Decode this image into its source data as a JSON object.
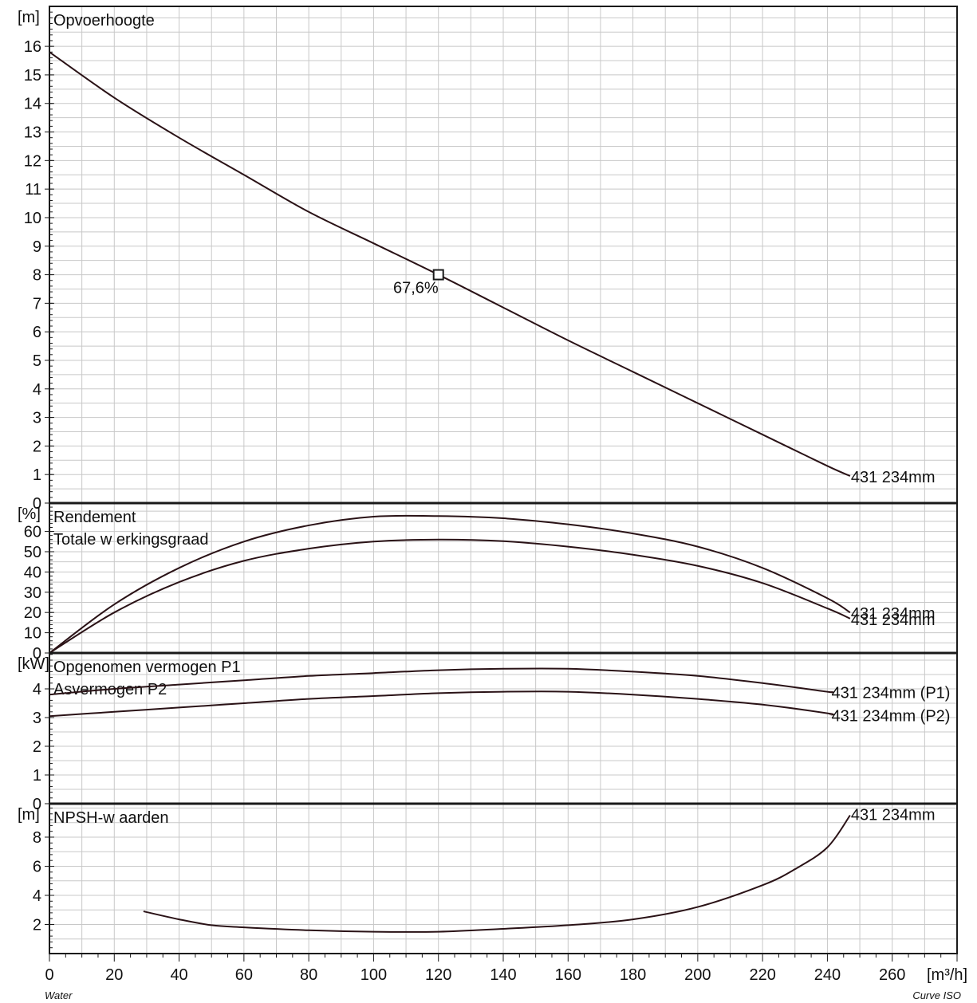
{
  "footer": {
    "left": "Water",
    "right": "Curve ISO"
  },
  "chart_data": {
    "type": "line",
    "x_axis": {
      "unit": "[m³/h]",
      "range": [
        0,
        280
      ],
      "ticks": [
        0,
        20,
        40,
        60,
        80,
        100,
        120,
        140,
        160,
        180,
        200,
        220,
        240,
        260
      ]
    },
    "grid": true,
    "panels": [
      {
        "id": "head",
        "titles": [
          "Opvoerhoogte"
        ],
        "unit": "[m]",
        "ylim": [
          0,
          17.4
        ],
        "yticks": [
          0,
          1,
          2,
          3,
          4,
          5,
          6,
          7,
          8,
          9,
          10,
          11,
          12,
          13,
          14,
          15,
          16
        ],
        "series": [
          {
            "name": "431 234mm",
            "x": [
              0,
              20,
              40,
              60,
              80,
              100,
              120,
              140,
              160,
              180,
              200,
              220,
              240,
              247
            ],
            "y": [
              15.8,
              14.2,
              12.8,
              11.5,
              10.2,
              9.1,
              8.0,
              6.85,
              5.7,
              4.6,
              3.5,
              2.4,
              1.3,
              0.95
            ]
          }
        ],
        "operating_point": {
          "x": 120,
          "y": 8.0,
          "label": "67,6%"
        }
      },
      {
        "id": "efficiency",
        "titles": [
          "Rendement",
          "Totale w erkingsgraad"
        ],
        "unit": "[%]",
        "ylim": [
          0,
          74
        ],
        "yticks": [
          0,
          10,
          20,
          30,
          40,
          50,
          60
        ],
        "series": [
          {
            "name": "431 234mm",
            "x": [
              0,
              20,
              40,
              60,
              80,
              100,
              120,
              140,
              160,
              180,
              200,
              220,
              240,
              247
            ],
            "y": [
              0,
              24,
              42,
              55,
              63,
              67.3,
              67.6,
              66.5,
              63.5,
              59,
              52.5,
              42,
              27,
              20
            ]
          },
          {
            "name": "431 234mm",
            "x": [
              0,
              20,
              40,
              60,
              80,
              100,
              120,
              140,
              160,
              180,
              200,
              220,
              240,
              247
            ],
            "y": [
              0,
              20,
              35,
              45.5,
              51.5,
              55,
              56,
              55.2,
              52.5,
              48.5,
              43,
              34.5,
              22,
              17
            ]
          }
        ]
      },
      {
        "id": "power",
        "titles": [
          "Opgenomen vermogen P1",
          "Asvermogen P2"
        ],
        "unit": "[kW]",
        "ylim": [
          0,
          5.25
        ],
        "yticks": [
          0,
          1,
          2,
          3,
          4
        ],
        "series": [
          {
            "name": "431 234mm (P1)",
            "x": [
              0,
              20,
              40,
              60,
              80,
              100,
              120,
              140,
              160,
              180,
              200,
              220,
              240,
              241
            ],
            "y": [
              3.8,
              4.0,
              4.15,
              4.3,
              4.45,
              4.55,
              4.65,
              4.7,
              4.7,
              4.6,
              4.45,
              4.2,
              3.9,
              3.9
            ]
          },
          {
            "name": "431 234mm (P2)",
            "x": [
              0,
              20,
              40,
              60,
              80,
              100,
              120,
              140,
              160,
              180,
              200,
              220,
              240,
              241
            ],
            "y": [
              3.05,
              3.2,
              3.35,
              3.5,
              3.65,
              3.75,
              3.85,
              3.9,
              3.9,
              3.8,
              3.65,
              3.45,
              3.15,
              3.1
            ]
          }
        ]
      },
      {
        "id": "npsh",
        "titles": [
          "NPSH-w aarden"
        ],
        "unit": "[m]",
        "ylim": [
          0,
          10.3
        ],
        "yticks": [
          2,
          4,
          6,
          8
        ],
        "series": [
          {
            "name": "431 234mm",
            "x": [
              29,
              40,
              50,
              60,
              80,
              100,
              120,
              140,
              160,
              180,
              200,
              220,
              230,
              240,
              247
            ],
            "y": [
              2.9,
              2.35,
              1.95,
              1.8,
              1.6,
              1.5,
              1.5,
              1.7,
              1.95,
              2.35,
              3.2,
              4.7,
              5.8,
              7.3,
              9.5
            ]
          }
        ]
      }
    ]
  }
}
